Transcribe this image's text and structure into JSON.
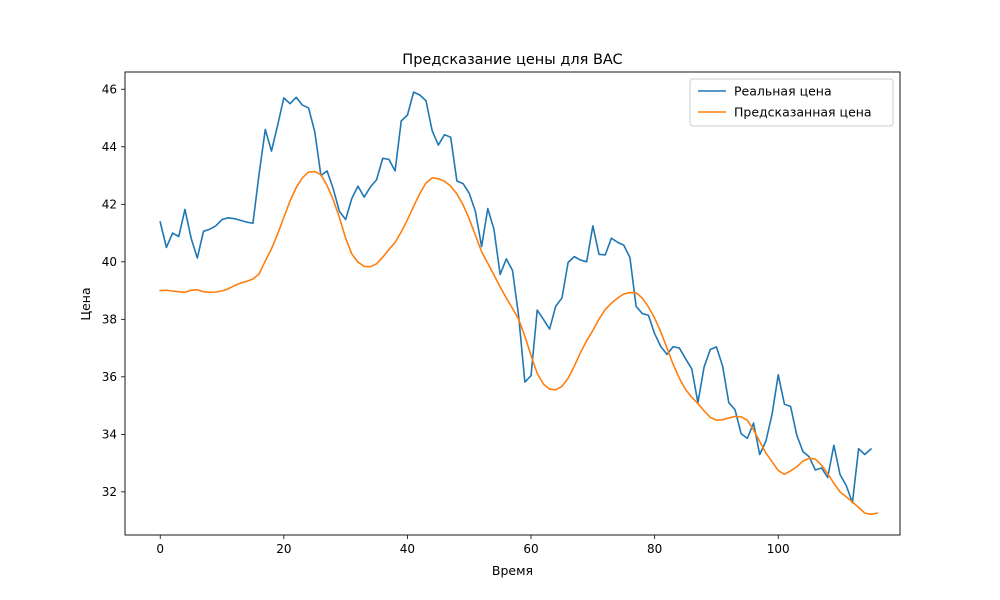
{
  "chart_data": {
    "type": "line",
    "title": "Предсказание цены для BAC",
    "xlabel": "Время",
    "ylabel": "Цена",
    "xlim": [
      -5.7,
      119.7
    ],
    "ylim": [
      30.5,
      46.6
    ],
    "xticks": [
      0,
      20,
      40,
      60,
      80,
      100
    ],
    "yticks": [
      32,
      34,
      36,
      38,
      40,
      42,
      44,
      46
    ],
    "grid": false,
    "legend_position": "top-right",
    "series": [
      {
        "name": "Реальная цена",
        "color": "#1f77b4",
        "x_start": 0,
        "values": [
          41.38,
          40.5,
          41.0,
          40.88,
          41.82,
          40.82,
          40.13,
          41.06,
          41.13,
          41.25,
          41.47,
          41.53,
          41.5,
          41.44,
          41.38,
          41.34,
          43.06,
          44.6,
          43.85,
          44.75,
          45.7,
          45.5,
          45.72,
          45.45,
          45.35,
          44.53,
          43.0,
          43.16,
          42.53,
          41.75,
          41.47,
          42.2,
          42.63,
          42.25,
          42.6,
          42.85,
          43.6,
          43.56,
          43.16,
          44.9,
          45.1,
          45.9,
          45.8,
          45.6,
          44.56,
          44.06,
          44.42,
          44.33,
          42.81,
          42.72,
          42.38,
          41.75,
          40.53,
          41.85,
          41.13,
          39.56,
          40.1,
          39.7,
          38.1,
          35.82,
          36.04,
          38.32,
          38.0,
          37.66,
          38.46,
          38.74,
          39.98,
          40.18,
          40.06,
          40.0,
          41.25,
          40.26,
          40.24,
          40.82,
          40.68,
          40.58,
          40.15,
          38.45,
          38.2,
          38.14,
          37.5,
          37.05,
          36.78,
          37.05,
          37.0,
          36.63,
          36.28,
          35.1,
          36.34,
          36.95,
          37.04,
          36.37,
          35.1,
          34.86,
          34.02,
          33.86,
          34.39,
          33.3,
          33.76,
          34.7,
          36.07,
          35.05,
          34.97,
          33.97,
          33.4,
          33.22,
          32.76,
          32.83,
          32.5,
          33.62,
          32.6,
          32.22,
          31.62,
          33.5,
          33.3,
          33.49
        ]
      },
      {
        "name": "Предсказанная цена",
        "color": "#ff7f0e",
        "x_start": 0,
        "values": [
          39.0,
          39.01,
          38.98,
          38.96,
          38.94,
          39.01,
          39.03,
          38.96,
          38.94,
          38.95,
          38.99,
          39.06,
          39.17,
          39.26,
          39.32,
          39.4,
          39.58,
          40.03,
          40.45,
          40.97,
          41.55,
          42.11,
          42.58,
          42.92,
          43.12,
          43.14,
          43.03,
          42.65,
          42.15,
          41.54,
          40.82,
          40.27,
          39.99,
          39.84,
          39.83,
          39.93,
          40.16,
          40.43,
          40.67,
          41.04,
          41.46,
          41.93,
          42.37,
          42.74,
          42.92,
          42.89,
          42.8,
          42.63,
          42.36,
          41.98,
          41.49,
          40.92,
          40.35,
          39.95,
          39.54,
          39.13,
          38.74,
          38.38,
          38.0,
          37.41,
          36.74,
          36.12,
          35.75,
          35.57,
          35.55,
          35.67,
          35.95,
          36.37,
          36.84,
          37.26,
          37.61,
          38.01,
          38.34,
          38.56,
          38.74,
          38.88,
          38.93,
          38.92,
          38.74,
          38.43,
          38.04,
          37.56,
          37.0,
          36.43,
          35.95,
          35.56,
          35.29,
          35.07,
          34.82,
          34.59,
          34.49,
          34.51,
          34.57,
          34.62,
          34.61,
          34.49,
          34.16,
          33.75,
          33.35,
          33.05,
          32.74,
          32.61,
          32.73,
          32.87,
          33.07,
          33.17,
          33.14,
          32.93,
          32.63,
          32.3,
          32.0,
          31.83,
          31.65,
          31.46,
          31.26,
          31.22,
          31.26
        ]
      }
    ]
  }
}
